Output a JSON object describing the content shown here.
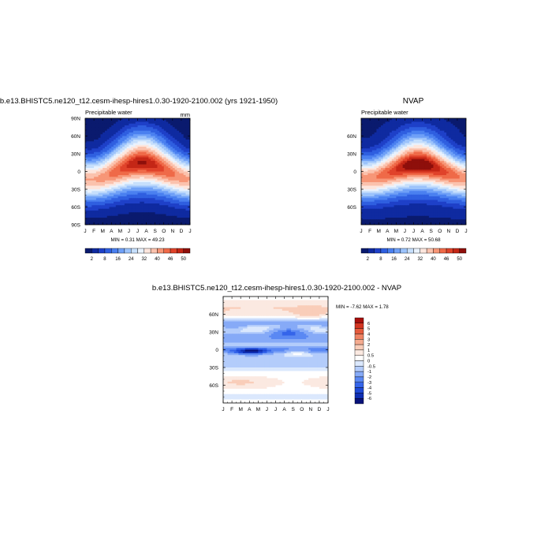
{
  "chart_data": [
    {
      "id": "model",
      "type": "heatmap",
      "title": "b.e13.BHISTC5.ne120_t12.cesm-ihesp-hires1.0.30-1920-2100.002 (yrs 1921-1950)",
      "subtitle_left": "Precipitable water",
      "units": "mm",
      "x_ticks": [
        "J",
        "F",
        "M",
        "A",
        "M",
        "J",
        "J",
        "A",
        "S",
        "O",
        "N",
        "D",
        "J"
      ],
      "y_ticks": [
        {
          "lat": 90,
          "label": "90N"
        },
        {
          "lat": 60,
          "label": "60N"
        },
        {
          "lat": 30,
          "label": "30N"
        },
        {
          "lat": 0,
          "label": "0"
        },
        {
          "lat": -30,
          "label": "30S"
        },
        {
          "lat": -60,
          "label": "60S"
        },
        {
          "lat": -90,
          "label": "90S"
        }
      ],
      "ylim": [
        -90,
        90
      ],
      "min_max_text": "MIN =   0.31 MAX =  49.23",
      "stats": {
        "min": 0.31,
        "max": 49.23
      },
      "field": {
        "eq_base": 44.0,
        "eq_amp": 5.0,
        "eq_shift_deg": 14.0,
        "width_deg": 38.0,
        "floor": 1.0
      },
      "colorbar_labels": [
        "2",
        "8",
        "16",
        "24",
        "32",
        "40",
        "46",
        "50"
      ]
    },
    {
      "id": "obs",
      "type": "heatmap",
      "title": "NVAP",
      "subtitle_left": "Precipitable water",
      "units": "",
      "x_ticks": [
        "J",
        "F",
        "M",
        "A",
        "M",
        "J",
        "J",
        "A",
        "S",
        "O",
        "N",
        "D",
        "J"
      ],
      "y_ticks": [
        {
          "lat": 60,
          "label": "60N"
        },
        {
          "lat": 30,
          "label": "30N"
        },
        {
          "lat": 0,
          "label": "0"
        },
        {
          "lat": -30,
          "label": "30S"
        },
        {
          "lat": -60,
          "label": "60S"
        }
      ],
      "ylim": [
        -90,
        90
      ],
      "min_max_text": "MIN =   0.72 MAX =  50.68",
      "stats": {
        "min": 0.72,
        "max": 50.68
      },
      "field": {
        "eq_base": 45.5,
        "eq_amp": 5.0,
        "eq_shift_deg": 12.0,
        "width_deg": 37.0,
        "floor": 1.5
      },
      "colorbar_labels": [
        "2",
        "8",
        "16",
        "24",
        "32",
        "40",
        "46",
        "50"
      ]
    },
    {
      "id": "diff",
      "type": "heatmap",
      "title": "b.e13.BHISTC5.ne120_t12.cesm-ihesp-hires1.0.30-1920-2100.002 - NVAP",
      "x_ticks": [
        "J",
        "F",
        "M",
        "A",
        "M",
        "J",
        "J",
        "A",
        "S",
        "O",
        "N",
        "D",
        "J"
      ],
      "y_ticks": [
        {
          "lat": 60,
          "label": "60N"
        },
        {
          "lat": 30,
          "label": "30N"
        },
        {
          "lat": 0,
          "label": "0"
        },
        {
          "lat": -30,
          "label": "30S"
        },
        {
          "lat": -60,
          "label": "60S"
        }
      ],
      "ylim": [
        -90,
        90
      ],
      "min_max_text": "MIN =  -7.62 MAX =   1.78",
      "stats": {
        "min": -7.62,
        "max": 1.78
      },
      "colorbar_labels": [
        "6",
        "5",
        "4",
        "3",
        "2",
        "1",
        "0.5",
        "0",
        "-0.5",
        "-1",
        "-2",
        "-3",
        "-4",
        "-5",
        "-6"
      ]
    }
  ],
  "colors": {
    "wv_levels": [
      "#0a1a6e",
      "#0f2aa0",
      "#1e40c8",
      "#2f5fe0",
      "#4a80f0",
      "#6fa0f7",
      "#9cc3fb",
      "#c6dffc",
      "#e9f2fd",
      "#fde6dd",
      "#fbc2ad",
      "#f79677",
      "#ef6a48",
      "#e0432a",
      "#c42716",
      "#8e0f0b"
    ],
    "diff_levels": [
      "#08127a",
      "#0f2fb4",
      "#1e49d6",
      "#3565ea",
      "#5a88f3",
      "#86aaf7",
      "#b3ccfb",
      "#dbe8fd",
      "#ffffff",
      "#fbe9e1",
      "#f9cdb9",
      "#f5ab8f",
      "#ef8263",
      "#e55a3c",
      "#d43522",
      "#a80f0c"
    ]
  }
}
